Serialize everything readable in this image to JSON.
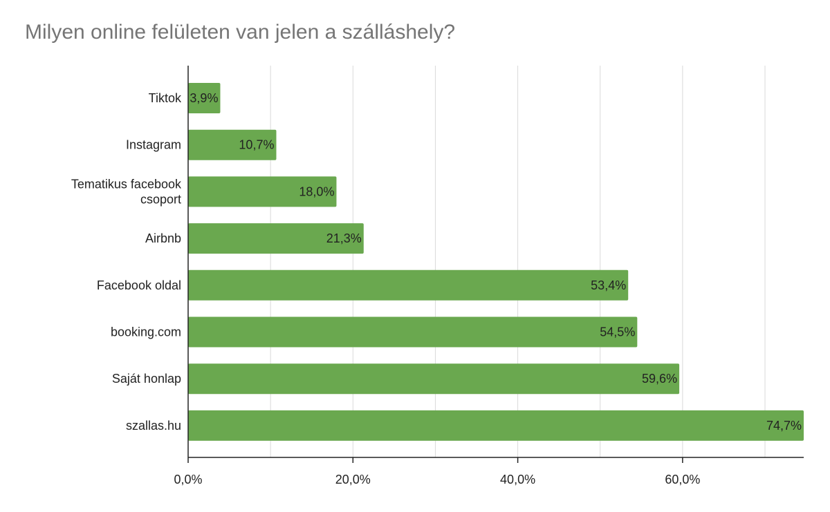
{
  "chart_data": {
    "type": "bar",
    "orientation": "horizontal",
    "title": "Milyen online felületen van jelen a szálláshely?",
    "categories": [
      "Tiktok",
      "Instagram",
      "Tematikus facebook csoport",
      "Airbnb",
      "Facebook oldal",
      "booking.com",
      "Saját honlap",
      "szallas.hu"
    ],
    "category_lines": [
      [
        "Tiktok"
      ],
      [
        "Instagram"
      ],
      [
        "Tematikus facebook",
        "csoport"
      ],
      [
        "Airbnb"
      ],
      [
        "Facebook oldal"
      ],
      [
        "booking.com"
      ],
      [
        "Saját honlap"
      ],
      [
        "szallas.hu"
      ]
    ],
    "values": [
      3.9,
      10.7,
      18.0,
      21.3,
      53.4,
      54.5,
      59.6,
      74.7
    ],
    "value_labels": [
      "3,9%",
      "10,7%",
      "18,0%",
      "21,3%",
      "53,4%",
      "54,5%",
      "59,6%",
      "74,7%"
    ],
    "x_ticks": [
      0,
      20,
      40,
      60
    ],
    "x_tick_labels": [
      "0,0%",
      "20,0%",
      "40,0%",
      "60,0%"
    ],
    "x_minor_gridlines": [
      10,
      30,
      50,
      70
    ],
    "xlim": [
      0,
      74.7
    ],
    "xlabel": "",
    "ylabel": "",
    "grid": true,
    "legend": "none",
    "bar_color": "#6aa84f",
    "grid_color": "#d9d9d9",
    "axis_color": "#222222"
  }
}
